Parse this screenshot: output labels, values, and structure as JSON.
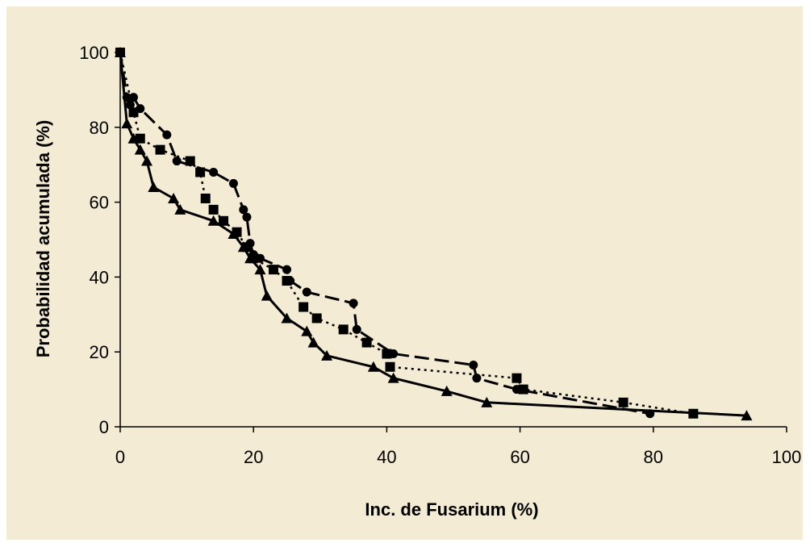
{
  "chart_data": {
    "type": "line",
    "title": "",
    "xlabel": "Inc. de Fusarium (%)",
    "ylabel": "Probabilidad acumulada (%)",
    "xlim": [
      0,
      100
    ],
    "ylim": [
      0,
      100
    ],
    "xticks": [
      0,
      20,
      40,
      60,
      80,
      100
    ],
    "yticks": [
      0,
      20,
      40,
      60,
      80,
      100
    ],
    "grid": false,
    "legend": "none",
    "background": "#f4ebd4",
    "series": [
      {
        "marker": "circle",
        "line_style": "long-dash",
        "color": "#000000",
        "x": [
          0,
          1,
          1.5,
          2,
          3,
          7,
          8.5,
          14,
          17,
          18.5,
          19,
          19.5,
          20,
          21,
          25,
          25.5,
          28,
          35,
          35.5,
          41,
          53,
          53.5,
          59.5,
          79.5
        ],
        "y": [
          100,
          88,
          86,
          88,
          85,
          78,
          71,
          68,
          65,
          58,
          56,
          49,
          46,
          45,
          42,
          39,
          36,
          33,
          26,
          19.5,
          16.5,
          13,
          10,
          3.5
        ]
      },
      {
        "marker": "square",
        "line_style": "dotted",
        "color": "#000000",
        "x": [
          0,
          2,
          3,
          6,
          10.5,
          12,
          12.8,
          14,
          15.5,
          17.5,
          19,
          20,
          23,
          25,
          27.5,
          29.5,
          33.5,
          37,
          40,
          40.5,
          59.5,
          60.5,
          75.5,
          86
        ],
        "y": [
          100,
          84,
          77,
          74,
          71,
          68,
          61,
          58,
          55,
          52,
          48,
          45,
          42,
          39,
          32,
          29,
          26,
          22.5,
          19.5,
          16,
          13,
          10,
          6.5,
          3.5
        ]
      },
      {
        "marker": "triangle",
        "line_style": "solid",
        "color": "#000000",
        "x": [
          0,
          1,
          2,
          3,
          4,
          5,
          8,
          9,
          14,
          17,
          18.5,
          19.5,
          21,
          22,
          25,
          28,
          29,
          31,
          38,
          41,
          49,
          55,
          94
        ],
        "y": [
          100,
          81,
          77,
          74,
          71,
          64,
          61,
          58,
          55,
          51.5,
          48,
          45,
          42,
          35,
          29,
          25.5,
          22.5,
          19,
          16,
          13,
          9.5,
          6.5,
          3
        ]
      }
    ]
  }
}
